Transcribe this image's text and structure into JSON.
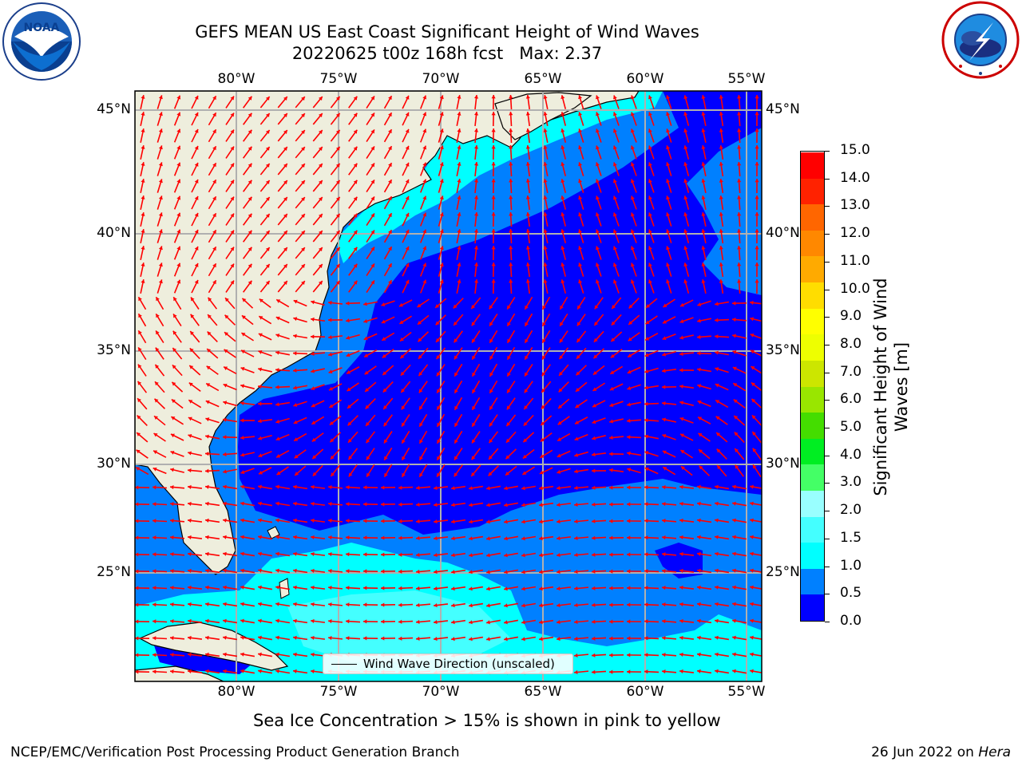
{
  "title": {
    "line1": "GEFS MEAN US East Coast Significant Height of Wind Waves",
    "line2": "20220625 t00z 168h fcst   Max: 2.37"
  },
  "logos": {
    "left": {
      "text": "NOAA",
      "icon": "noaa-logo-icon"
    },
    "right": {
      "icon": "nws-logo-icon"
    }
  },
  "map": {
    "lon_labels": [
      "80°W",
      "75°W",
      "70°W",
      "65°W",
      "60°W",
      "55°W"
    ],
    "lat_labels": [
      "45°N",
      "40°N",
      "35°N",
      "30°N",
      "25°N"
    ],
    "colors": {
      "land": "#eeeedd",
      "grid": "#b0b0b0",
      "arrow": "#ff0000",
      "coast": "#000000"
    },
    "legend_text": "Wind Wave Direction (unscaled)"
  },
  "colorbar": {
    "label": "Significant Height of Wind Waves [m]",
    "ticks": [
      "15.0",
      "14.0",
      "13.0",
      "12.0",
      "11.0",
      "10.0",
      "9.0",
      "8.0",
      "7.0",
      "6.0",
      "5.0",
      "4.0",
      "3.0",
      "2.0",
      "1.5",
      "1.0",
      "0.5",
      "0.0"
    ],
    "colors": [
      "#0000ff",
      "#0080ff",
      "#00ffff",
      "#44ffff",
      "#99ffff",
      "#44ff66",
      "#00ee22",
      "#44dd00",
      "#99e600",
      "#cce600",
      "#eeff00",
      "#ffff00",
      "#ffdd00",
      "#ffaa00",
      "#ff8800",
      "#ff6600",
      "#ff2200",
      "#ff0000"
    ]
  },
  "caption": "Sea Ice Concentration > 15% is shown in pink to yellow",
  "footer": {
    "left": "NCEP/EMC/Verification Post Processing Product Generation Branch",
    "date": "26 Jun 2022 on ",
    "host": "Hera"
  }
}
